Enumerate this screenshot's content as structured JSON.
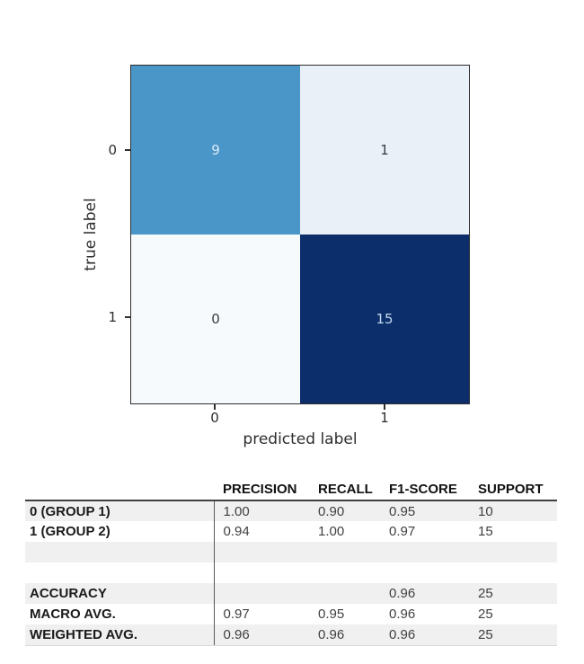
{
  "chart_data": [
    {
      "type": "heatmap",
      "title": "",
      "xlabel": "predicted label",
      "ylabel": "true label",
      "x_tick_labels": [
        "0",
        "1"
      ],
      "y_tick_labels": [
        "0",
        "1"
      ],
      "matrix": [
        [
          9,
          1
        ],
        [
          0,
          15
        ]
      ],
      "colormap": "Blues",
      "value_range": [
        0,
        15
      ],
      "cell_colors": [
        [
          "#4a96c8",
          "#e9f0f8"
        ],
        [
          "#f7fafd",
          "#0c2f6b"
        ]
      ],
      "cell_text_colors": [
        [
          "#d8eaf7",
          "#373c41"
        ],
        [
          "#373c41",
          "#c3d8ef"
        ]
      ],
      "axis_color": "#2e2e2e"
    },
    {
      "type": "table",
      "columns": [
        "",
        "PRECISION",
        "RECALL",
        "F1-SCORE",
        "SUPPORT"
      ],
      "rows": [
        {
          "label": "0 (GROUP 1)",
          "values": [
            "1.00",
            "0.90",
            "0.95",
            "10"
          ],
          "shaded": true
        },
        {
          "label": "1 (GROUP 2)",
          "values": [
            "0.94",
            "1.00",
            "0.97",
            "15"
          ],
          "shaded": false
        },
        {
          "label": "",
          "values": [
            "",
            "",
            "",
            ""
          ],
          "shaded": true
        },
        {
          "label": "",
          "values": [
            "",
            "",
            "",
            ""
          ],
          "shaded": false
        },
        {
          "label": "ACCURACY",
          "values": [
            "",
            "",
            "0.96",
            "25"
          ],
          "shaded": true
        },
        {
          "label": "MACRO AVG.",
          "values": [
            "0.97",
            "0.95",
            "0.96",
            "25"
          ],
          "shaded": false
        },
        {
          "label": "WEIGHTED AVG.",
          "values": [
            "0.96",
            "0.96",
            "0.96",
            "25"
          ],
          "shaded": true
        }
      ],
      "shaded_row_color": "#f0f0f0",
      "header_rule_color": "#404040",
      "divider_color": "#595959"
    }
  ]
}
